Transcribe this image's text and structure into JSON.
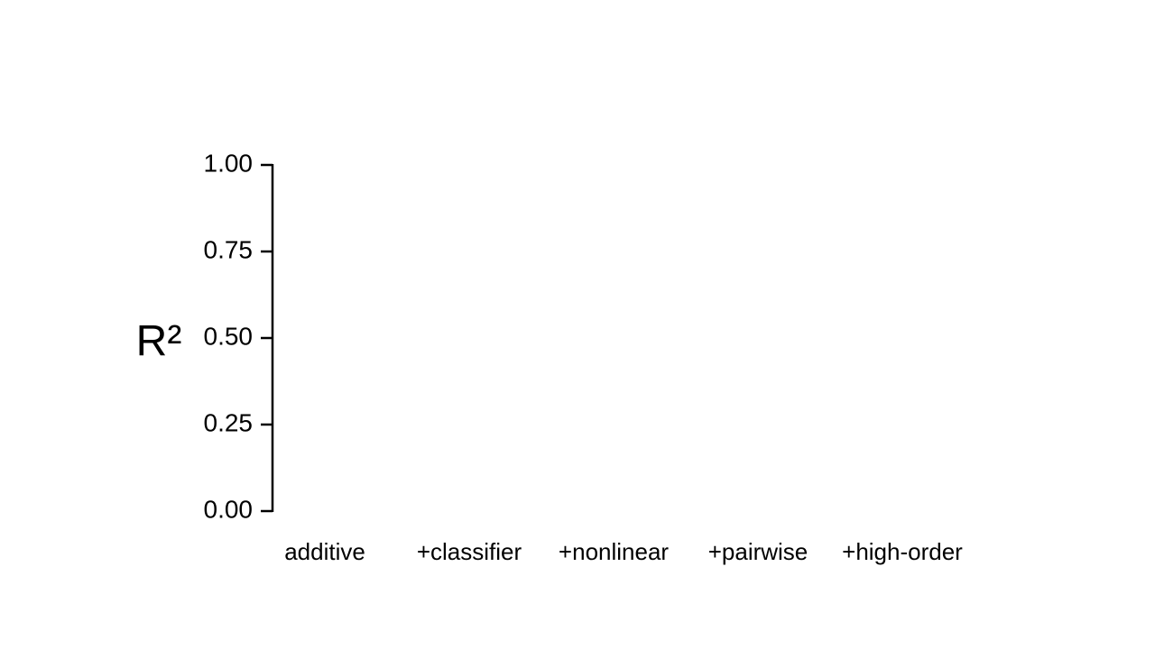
{
  "chart_data": {
    "type": "bar",
    "y_label": "R²",
    "categories": [
      "additive",
      "+classifier",
      "+nonlinear",
      "+pairwise",
      "+high-order"
    ],
    "ylim": [
      0,
      1
    ],
    "yticks": [
      {
        "value": 0,
        "label": "0.00"
      },
      {
        "value": 0.25,
        "label": "0.25"
      },
      {
        "value": 0.5,
        "label": "0.50"
      },
      {
        "value": 0.75,
        "label": "0.75"
      },
      {
        "value": 1,
        "label": "1.00"
      }
    ],
    "grid": false
  }
}
